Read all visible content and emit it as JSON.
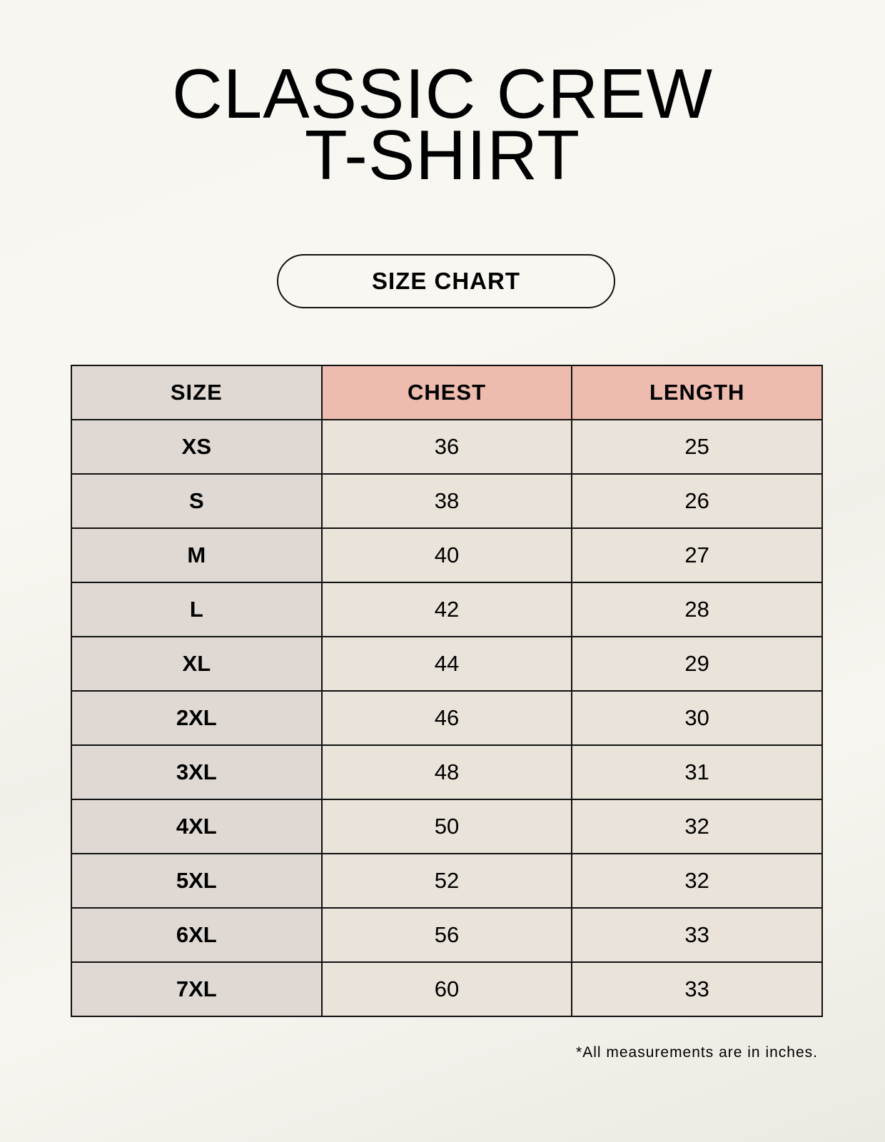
{
  "title": {
    "line1": "CLASSIC CREW",
    "line2": "T-SHIRT"
  },
  "badge": "SIZE CHART",
  "table": {
    "headers": [
      "SIZE",
      "CHEST",
      "LENGTH"
    ],
    "rows": [
      [
        "XS",
        "36",
        "25"
      ],
      [
        "S",
        "38",
        "26"
      ],
      [
        "M",
        "40",
        "27"
      ],
      [
        "L",
        "42",
        "28"
      ],
      [
        "XL",
        "44",
        "29"
      ],
      [
        "2XL",
        "46",
        "30"
      ],
      [
        "3XL",
        "48",
        "31"
      ],
      [
        "4XL",
        "50",
        "32"
      ],
      [
        "5XL",
        "52",
        "32"
      ],
      [
        "6XL",
        "56",
        "33"
      ],
      [
        "7XL",
        "60",
        "33"
      ]
    ]
  },
  "footnote": "*All measurements are in inches.",
  "colors": {
    "header_accent": "#edbcae",
    "size_column": "#e0d9d3",
    "value_cells": "#eae3d9"
  }
}
